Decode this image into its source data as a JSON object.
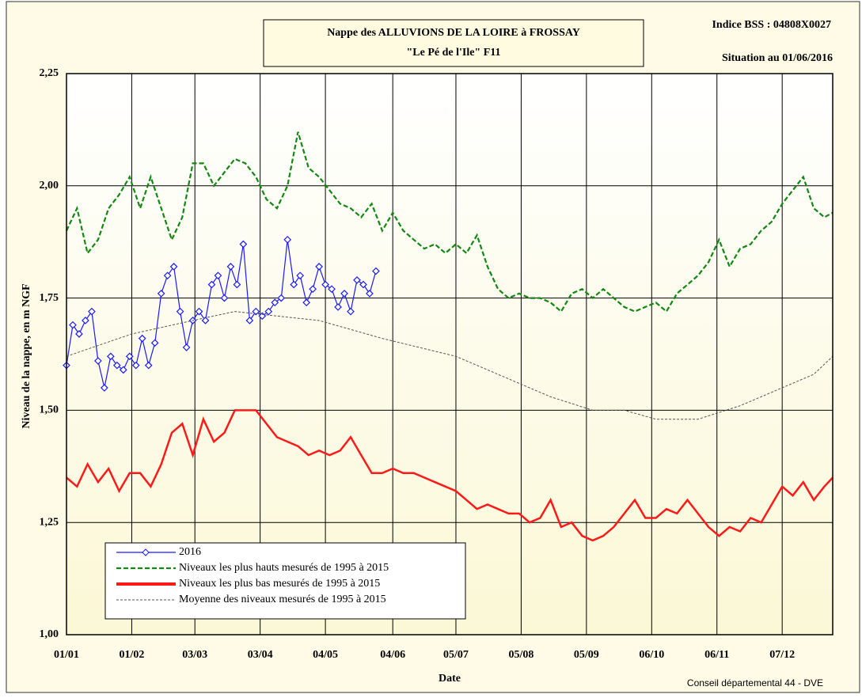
{
  "chart_data": {
    "type": "line",
    "title": [
      "Nappe des ALLUVIONS DE LA LOIRE à FROSSAY",
      "\"Le Pé de l'Ile\" F11"
    ],
    "annotations": [
      "Indice BSS : 04808X0027",
      "Situation au 01/06/2016",
      "Conseil départemental 44  - DVE"
    ],
    "x_label": "Date",
    "y_label": "Niveau de la nappe, en m NGF",
    "xlim": [
      0,
      364
    ],
    "xticks": [
      {
        "value": 0,
        "label": "01/01"
      },
      {
        "value": 31,
        "label": "01/02"
      },
      {
        "value": 61,
        "label": "03/03"
      },
      {
        "value": 92,
        "label": "03/04"
      },
      {
        "value": 123,
        "label": "04/05"
      },
      {
        "value": 155,
        "label": "04/06"
      },
      {
        "value": 185,
        "label": "05/07"
      },
      {
        "value": 216,
        "label": "05/08"
      },
      {
        "value": 247,
        "label": "05/09"
      },
      {
        "value": 278,
        "label": "06/10"
      },
      {
        "value": 309,
        "label": "06/11"
      },
      {
        "value": 340,
        "label": "07/12"
      }
    ],
    "ylim": [
      1.0,
      2.25
    ],
    "yticks": [
      {
        "value": 1.0,
        "label": "1,00"
      },
      {
        "value": 1.25,
        "label": "1,25"
      },
      {
        "value": 1.5,
        "label": "1,50"
      },
      {
        "value": 1.75,
        "label": "1,75"
      },
      {
        "value": 2.0,
        "label": "2,00"
      },
      {
        "value": 2.25,
        "label": "2,25"
      }
    ],
    "grid": true,
    "legend": "lower-left",
    "series": [
      {
        "name": "2016",
        "color": "#1a1aff",
        "style": "solid",
        "marker": "diamond",
        "x": [
          0,
          3,
          6,
          9,
          12,
          15,
          18,
          21,
          24,
          27,
          30,
          33,
          36,
          39,
          42,
          45,
          48,
          51,
          54,
          57,
          60,
          63,
          66,
          69,
          72,
          75,
          78,
          81,
          84,
          87,
          90,
          93,
          96,
          99,
          102,
          105,
          108,
          111,
          114,
          117,
          120,
          123,
          126,
          129,
          132,
          135,
          138,
          141,
          144,
          147
        ],
        "values": [
          1.6,
          1.69,
          1.67,
          1.7,
          1.72,
          1.61,
          1.55,
          1.62,
          1.6,
          1.59,
          1.62,
          1.6,
          1.66,
          1.6,
          1.65,
          1.76,
          1.8,
          1.82,
          1.72,
          1.64,
          1.7,
          1.72,
          1.7,
          1.78,
          1.8,
          1.75,
          1.82,
          1.78,
          1.87,
          1.7,
          1.72,
          1.71,
          1.72,
          1.74,
          1.75,
          1.88,
          1.78,
          1.8,
          1.74,
          1.77,
          1.82,
          1.78,
          1.77,
          1.73,
          1.76,
          1.72,
          1.79,
          1.78,
          1.76,
          1.81
        ]
      },
      {
        "name": "Niveaux les plus hauts mesurés de 1995 à 2015",
        "color": "#118811",
        "style": "dashed",
        "x": [
          0,
          5,
          10,
          15,
          20,
          25,
          30,
          35,
          40,
          45,
          50,
          55,
          60,
          65,
          70,
          75,
          80,
          85,
          90,
          95,
          100,
          105,
          110,
          115,
          120,
          125,
          130,
          135,
          140,
          145,
          150,
          155,
          160,
          165,
          170,
          175,
          180,
          185,
          190,
          195,
          200,
          205,
          210,
          215,
          220,
          225,
          230,
          235,
          240,
          245,
          250,
          255,
          260,
          265,
          270,
          275,
          280,
          285,
          290,
          295,
          300,
          305,
          310,
          315,
          320,
          325,
          330,
          335,
          340,
          345,
          350,
          355,
          360,
          364
        ],
        "values": [
          1.9,
          1.95,
          1.85,
          1.88,
          1.95,
          1.98,
          2.02,
          1.95,
          2.02,
          1.95,
          1.88,
          1.93,
          2.05,
          2.05,
          2.0,
          2.03,
          2.06,
          2.05,
          2.02,
          1.97,
          1.95,
          2.0,
          2.12,
          2.04,
          2.02,
          1.99,
          1.96,
          1.95,
          1.93,
          1.96,
          1.9,
          1.94,
          1.9,
          1.88,
          1.86,
          1.87,
          1.85,
          1.87,
          1.85,
          1.89,
          1.82,
          1.77,
          1.75,
          1.76,
          1.75,
          1.75,
          1.74,
          1.72,
          1.76,
          1.77,
          1.75,
          1.77,
          1.75,
          1.73,
          1.72,
          1.73,
          1.74,
          1.72,
          1.76,
          1.78,
          1.8,
          1.83,
          1.88,
          1.82,
          1.86,
          1.87,
          1.9,
          1.92,
          1.96,
          1.99,
          2.02,
          1.95,
          1.93,
          1.94
        ]
      },
      {
        "name": "Niveaux les plus bas mesurés de 1995 à 2015",
        "color": "#ff1a1a",
        "style": "solid",
        "x": [
          0,
          5,
          10,
          15,
          20,
          25,
          30,
          35,
          40,
          45,
          50,
          55,
          60,
          65,
          70,
          75,
          80,
          85,
          90,
          95,
          100,
          105,
          110,
          115,
          120,
          125,
          130,
          135,
          140,
          145,
          150,
          155,
          160,
          165,
          170,
          175,
          180,
          185,
          190,
          195,
          200,
          205,
          210,
          215,
          220,
          225,
          230,
          235,
          240,
          245,
          250,
          255,
          260,
          265,
          270,
          275,
          280,
          285,
          290,
          295,
          300,
          305,
          310,
          315,
          320,
          325,
          330,
          335,
          340,
          345,
          350,
          355,
          360,
          364
        ],
        "values": [
          1.35,
          1.33,
          1.38,
          1.34,
          1.37,
          1.32,
          1.36,
          1.36,
          1.33,
          1.38,
          1.45,
          1.47,
          1.4,
          1.48,
          1.43,
          1.45,
          1.5,
          1.5,
          1.5,
          1.47,
          1.44,
          1.43,
          1.42,
          1.4,
          1.41,
          1.4,
          1.41,
          1.44,
          1.4,
          1.36,
          1.36,
          1.37,
          1.36,
          1.36,
          1.35,
          1.34,
          1.33,
          1.32,
          1.3,
          1.28,
          1.29,
          1.28,
          1.27,
          1.27,
          1.25,
          1.26,
          1.3,
          1.24,
          1.25,
          1.22,
          1.21,
          1.22,
          1.24,
          1.27,
          1.3,
          1.26,
          1.26,
          1.28,
          1.27,
          1.3,
          1.27,
          1.24,
          1.22,
          1.24,
          1.23,
          1.26,
          1.25,
          1.29,
          1.33,
          1.31,
          1.34,
          1.3,
          1.33,
          1.35
        ]
      },
      {
        "name": "Moyenne des niveaux mesurés de 1995 à 2015",
        "color": "#555555",
        "style": "dashed-thin",
        "x": [
          0,
          31,
          60,
          80,
          100,
          120,
          150,
          185,
          210,
          230,
          250,
          265,
          280,
          300,
          320,
          340,
          355,
          364
        ],
        "values": [
          1.62,
          1.67,
          1.7,
          1.72,
          1.71,
          1.7,
          1.66,
          1.62,
          1.57,
          1.53,
          1.5,
          1.5,
          1.48,
          1.48,
          1.51,
          1.55,
          1.58,
          1.62
        ]
      }
    ]
  }
}
